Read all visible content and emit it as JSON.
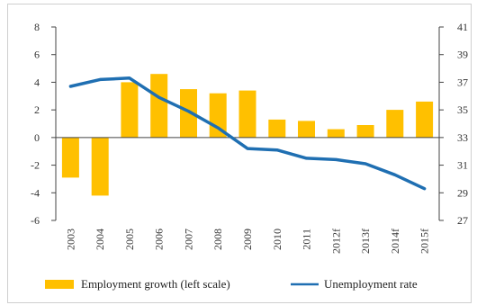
{
  "chart_data": {
    "type": "bar+line",
    "title": "",
    "categories": [
      "2003",
      "2004",
      "2005",
      "2006",
      "2007",
      "2008",
      "2009",
      "2010",
      "2011",
      "2012f",
      "2013f",
      "2014f",
      "2015f"
    ],
    "series": [
      {
        "name": "Employment growth (left scale)",
        "type": "bar",
        "axis": "left",
        "color": "#ffc000",
        "values": [
          -2.9,
          -4.2,
          4.0,
          4.6,
          3.5,
          3.2,
          3.4,
          1.3,
          1.2,
          0.6,
          0.9,
          2.0,
          2.6
        ]
      },
      {
        "name": "Unemployment rate",
        "type": "line",
        "axis": "right",
        "color": "#1f6fb2",
        "values": [
          36.7,
          37.2,
          37.3,
          35.9,
          34.9,
          33.7,
          32.2,
          32.1,
          31.5,
          31.4,
          31.1,
          30.3,
          29.3
        ]
      }
    ],
    "y_left": {
      "min": -6,
      "max": 8,
      "ticks": [
        -6,
        -4,
        -2,
        0,
        2,
        4,
        6,
        8
      ]
    },
    "y_right": {
      "min": 27,
      "max": 41,
      "ticks": [
        27,
        29,
        31,
        33,
        35,
        37,
        39,
        41
      ]
    },
    "legend_position": "bottom",
    "grid": false
  }
}
